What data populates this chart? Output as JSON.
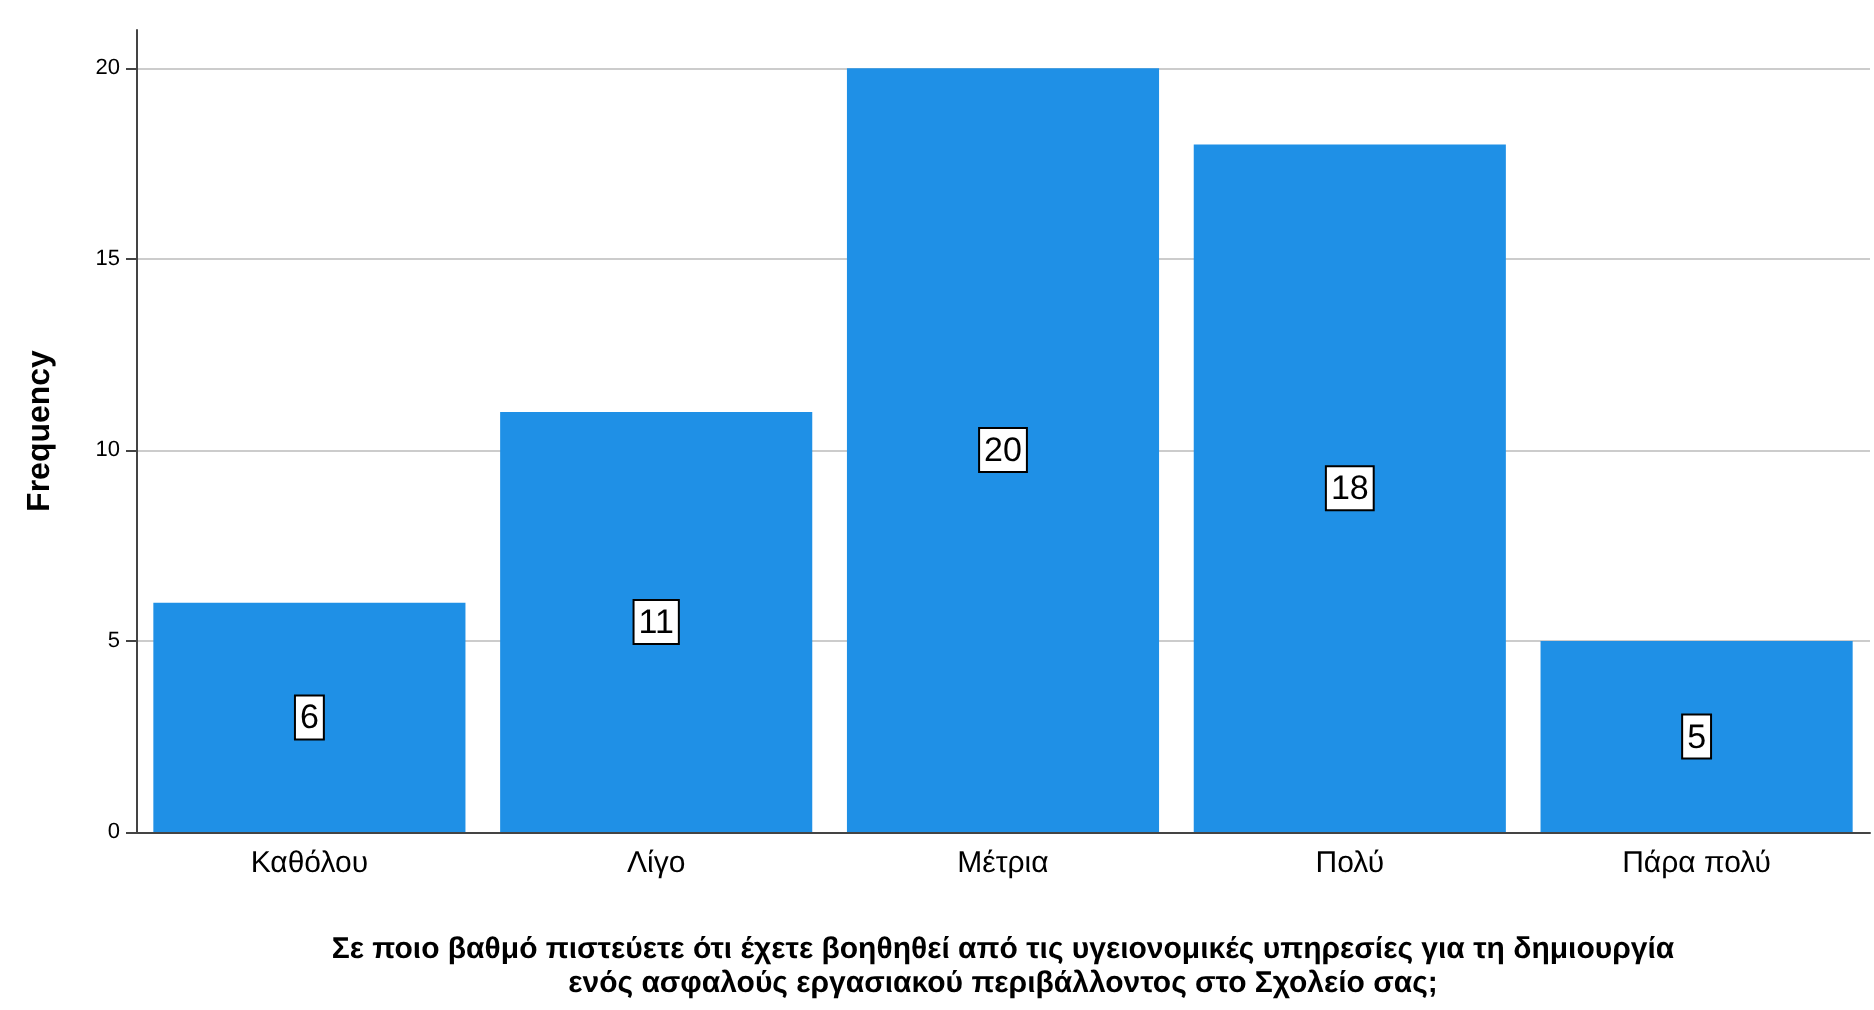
{
  "chart_data": {
    "type": "bar",
    "xlabel": "Σε ποιο βαθμό πιστεύετε ότι έχετε βοηθηθεί από τις υγειονομικές υπηρεσίες για τη δημιουργία ενός ασφαλούς εργασιακού περιβάλλοντος στο Σχολείο σας;",
    "ylabel": "Frequency",
    "categories": [
      "Καθόλου",
      "Λίγο",
      "Μέτρια",
      "Πολύ",
      "Πάρα πολύ"
    ],
    "values": [
      6,
      11,
      20,
      18,
      5
    ],
    "color": "#1f90e6",
    "ylim": [
      0,
      21
    ],
    "yticks": [
      0,
      5,
      10,
      15,
      20
    ],
    "grid": "y",
    "data_labels": true
  }
}
